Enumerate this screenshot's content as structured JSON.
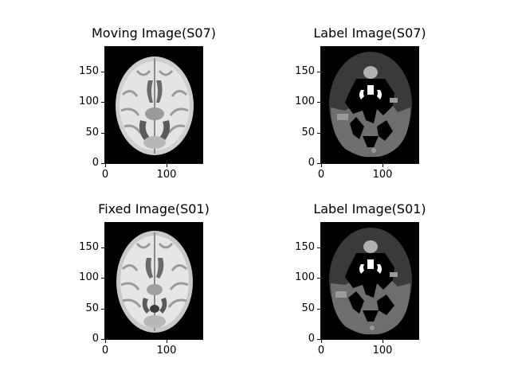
{
  "figure": {
    "panels": [
      {
        "title": "Moving Image(S07)",
        "kind": "mri-intensity",
        "y_ticks": [
          "0",
          "50",
          "100",
          "150"
        ],
        "x_ticks": [
          "0",
          "100"
        ]
      },
      {
        "title": "Label Image(S07)",
        "kind": "segmentation-label",
        "y_ticks": [
          "0",
          "50",
          "100",
          "150"
        ],
        "x_ticks": [
          "0",
          "100"
        ]
      },
      {
        "title": "Fixed Image(S01)",
        "kind": "mri-intensity",
        "y_ticks": [
          "0",
          "50",
          "100",
          "150"
        ],
        "x_ticks": [
          "0",
          "100"
        ]
      },
      {
        "title": "Label Image(S01)",
        "kind": "segmentation-label",
        "y_ticks": [
          "0",
          "50",
          "100",
          "150"
        ],
        "x_ticks": [
          "0",
          "100"
        ]
      }
    ],
    "colors": {
      "background": "#000000",
      "label_dark": "#3a3a3a",
      "label_mid": "#6e6e6e",
      "label_light": "#b0b0b0",
      "label_white": "#ffffff"
    }
  }
}
